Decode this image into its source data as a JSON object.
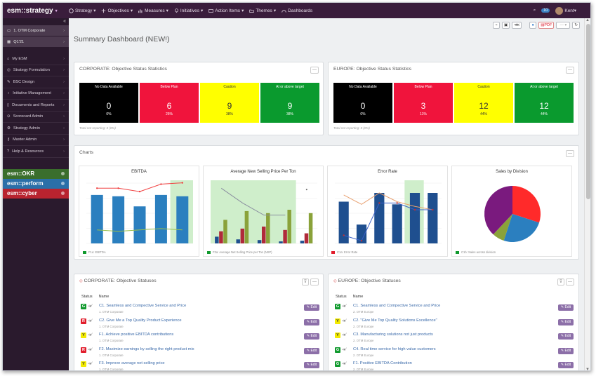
{
  "app": {
    "brand": "esm::strategy"
  },
  "nav": [
    "Strategy",
    "Objectives",
    "Measures",
    "Initiatives",
    "Action Items",
    "Themes",
    "Dashboards"
  ],
  "user": {
    "notifications": "10",
    "name": "Kent"
  },
  "sidebar": {
    "contexts": [
      "1. OTM Corporate",
      "Q1'21"
    ],
    "items": [
      "My ESM",
      "Strategy Formulation",
      "BSC Design",
      "Initiative Management",
      "Documents and Reports",
      "Scorecard Admin",
      "Strategy Admin",
      "Master Admin",
      "Help & Resources"
    ],
    "products": [
      {
        "label": "esm::OKR",
        "color": "#3a6e2c"
      },
      {
        "label": "esm::perform",
        "color": "#2a6fa8"
      },
      {
        "label": "esm::cyber",
        "color": "#b8232f"
      }
    ]
  },
  "toolbar": {
    "pdf": "PDF"
  },
  "page": {
    "title": "Summary Dashboard (NEW!)"
  },
  "stats": [
    {
      "title": "CORPORATE: Objective Status Statistics",
      "footer": "Total not reporting: 0 (0%)",
      "cells": [
        {
          "label": "No Data Available",
          "value": "0",
          "pct": "0%",
          "color": "#000000",
          "text": "#ffffff"
        },
        {
          "label": "Below Plan",
          "value": "6",
          "pct": "25%",
          "color": "#f0143c",
          "text": "#ffffff"
        },
        {
          "label": "Caution",
          "value": "9",
          "pct": "38%",
          "color": "#ffff00",
          "text": "#333333"
        },
        {
          "label": "At or above target",
          "value": "9",
          "pct": "38%",
          "color": "#0a9a2e",
          "text": "#ffffff"
        }
      ]
    },
    {
      "title": "EUROPE: Objective Status Statistics",
      "footer": "Total not reporting: 0 (0%)",
      "cells": [
        {
          "label": "No Data Available",
          "value": "0",
          "pct": "0%",
          "color": "#000000",
          "text": "#ffffff"
        },
        {
          "label": "Below Plan",
          "value": "3",
          "pct": "11%",
          "color": "#f0143c",
          "text": "#ffffff"
        },
        {
          "label": "Caution",
          "value": "12",
          "pct": "44%",
          "color": "#ffff00",
          "text": "#333333"
        },
        {
          "label": "At or above target",
          "value": "12",
          "pct": "44%",
          "color": "#0a9a2e",
          "text": "#ffffff"
        }
      ]
    }
  ],
  "charts_panel": {
    "title": "Charts"
  },
  "charts": [
    {
      "title": "EBITDA",
      "legend": "F1a: EBITDA",
      "type": "bar-line",
      "bars": [
        72,
        70,
        55,
        72,
        70
      ],
      "highlight": 4
    },
    {
      "title": "Average New Selling Price Per Ton",
      "legend": "F3a: Average Net Selling Price per Ton (NSP)",
      "type": "grouped",
      "groups": [
        [
          10,
          18,
          35
        ],
        [
          6,
          22,
          48
        ],
        [
          5,
          25,
          45
        ],
        [
          3,
          20,
          50
        ],
        [
          4,
          15,
          45
        ]
      ]
    },
    {
      "title": "Error Rate",
      "legend": "C1a: Error Rate",
      "type": "bar-line",
      "bars": [
        62,
        28,
        75,
        58,
        75,
        75
      ],
      "highlight": 4
    },
    {
      "title": "Sales by Division",
      "legend": "C1b: Sales across division",
      "type": "pie",
      "slices": [
        {
          "v": 30,
          "c": "#ff2a2a"
        },
        {
          "v": 25,
          "c": "#2b7fbf"
        },
        {
          "v": 7,
          "c": "#8aa23a"
        },
        {
          "v": 38,
          "c": "#7a1a7e"
        }
      ]
    }
  ],
  "statuses": [
    {
      "title": "CORPORATE: Objective Statuses",
      "headers": {
        "status": "Status",
        "name": "Name"
      },
      "rows": [
        {
          "s": "G",
          "name": "C1. Seamless and Compective Service and Price",
          "sub": "1. OTM Corporate"
        },
        {
          "s": "R",
          "name": "C2. Give Me a Top Quality Product Experience",
          "sub": "1. OTM Corporate"
        },
        {
          "s": "Y",
          "name": "F1. Achieve positive EBITDA contributions",
          "sub": "1. OTM Corporate"
        },
        {
          "s": "R",
          "name": "F2. Maximize earnings by selling the right product mix",
          "sub": "1. OTM Corporate"
        },
        {
          "s": "Y",
          "name": "F3. Improve average net selling price",
          "sub": "1. OTM Corporate"
        }
      ]
    },
    {
      "title": "EUROPE: Objective Statuses",
      "headers": {
        "status": "Status",
        "name": "Name"
      },
      "rows": [
        {
          "s": "G",
          "name": "C1. Seamless and Compective Service and Price",
          "sub": "2. OTM Europe"
        },
        {
          "s": "Y",
          "name": "C2. \"Give Me Top Quality Solutions Excellence\"",
          "sub": "2. OTM Europe"
        },
        {
          "s": "Y",
          "name": "C3. Manufacturing solutions not just products",
          "sub": "2. OTM Europe"
        },
        {
          "s": "G",
          "name": "C4. Real time service for high value customers",
          "sub": "2. OTM Europe"
        },
        {
          "s": "G",
          "name": "F1. Positive EBITDA Contribution",
          "sub": "2. OTM Europe"
        }
      ]
    }
  ],
  "edit_label": "Edit",
  "status_colors": {
    "G": "#119a2e",
    "R": "#e11d2c",
    "Y": "#f2ea00"
  }
}
